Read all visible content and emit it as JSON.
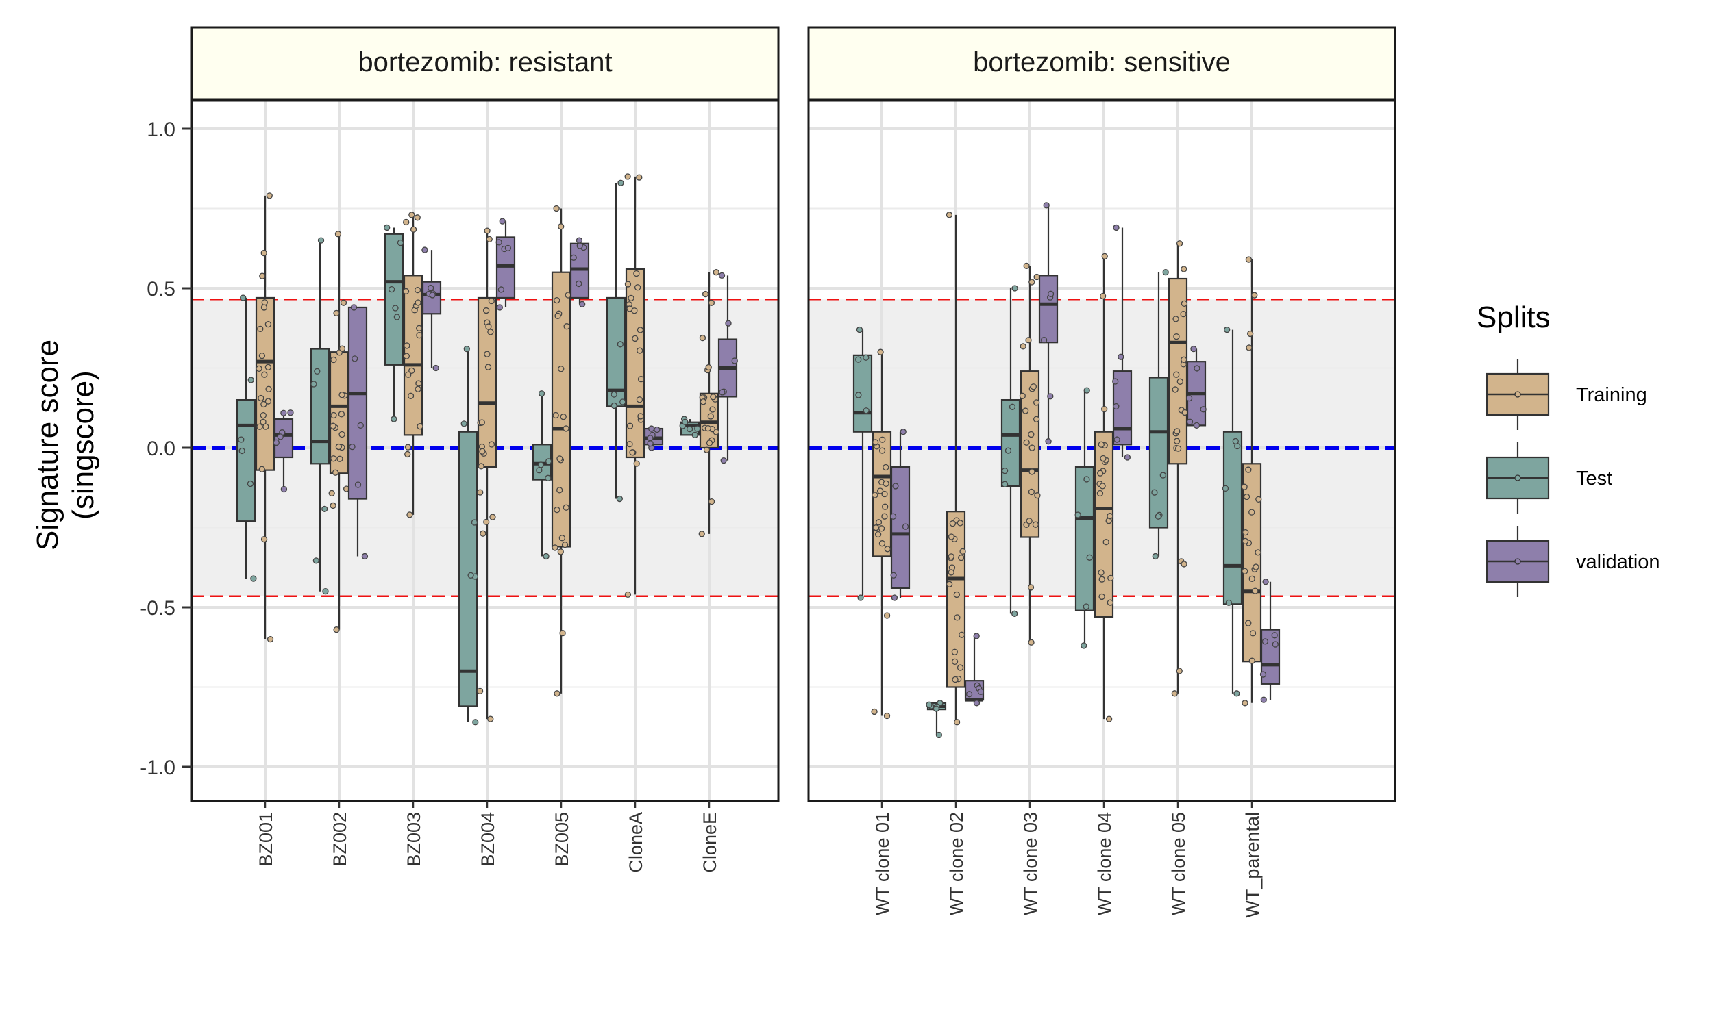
{
  "chart_data": {
    "type": "boxplot",
    "ylabel": [
      "Signature score",
      "(singscore)"
    ],
    "ylim": [
      -1.1,
      1.1
    ],
    "yticks": [
      1.0,
      0.5,
      0.0,
      -0.5,
      -1.0
    ],
    "ytick_labels": [
      "1.0",
      "0.5",
      "0.0",
      "-0.5",
      "-1.0"
    ],
    "reference_lines": {
      "zero": {
        "y": 0.0,
        "color": "#0000ee"
      },
      "upper": {
        "y": 0.465,
        "color": "#ee1111"
      },
      "lower": {
        "y": -0.465,
        "color": "#ee1111"
      },
      "band_color": "#efefef"
    },
    "legend": {
      "title": "Splits",
      "position": "right",
      "entries": [
        {
          "key": "Training",
          "label": "Training",
          "color": "#d2b48c"
        },
        {
          "key": "Test",
          "label": "Test",
          "color": "#7ea59f"
        },
        {
          "key": "validation",
          "label": "validation",
          "color": "#8e7fab"
        }
      ]
    },
    "panels": [
      {
        "title": "bortezomib: resistant",
        "categories": [
          {
            "name": "BZ001",
            "boxes": [
              {
                "split": "Test",
                "q1": -0.23,
                "median": 0.07,
                "q3": 0.15,
                "min": -0.41,
                "max": 0.47
              },
              {
                "split": "Training",
                "q1": -0.07,
                "median": 0.27,
                "q3": 0.47,
                "min": -0.6,
                "max": 0.79
              },
              {
                "split": "validation",
                "q1": -0.03,
                "median": 0.04,
                "q3": 0.09,
                "min": -0.13,
                "max": 0.11
              }
            ]
          },
          {
            "name": "BZ002",
            "boxes": [
              {
                "split": "Test",
                "q1": -0.05,
                "median": 0.02,
                "q3": 0.31,
                "min": -0.45,
                "max": 0.65
              },
              {
                "split": "Training",
                "q1": -0.08,
                "median": 0.13,
                "q3": 0.3,
                "min": -0.57,
                "max": 0.67
              },
              {
                "split": "validation",
                "q1": -0.16,
                "median": 0.17,
                "q3": 0.44,
                "min": -0.34,
                "max": 0.44
              }
            ]
          },
          {
            "name": "BZ003",
            "boxes": [
              {
                "split": "Test",
                "q1": 0.26,
                "median": 0.52,
                "q3": 0.67,
                "min": 0.09,
                "max": 0.69
              },
              {
                "split": "Training",
                "q1": 0.04,
                "median": 0.26,
                "q3": 0.54,
                "min": -0.21,
                "max": 0.73
              },
              {
                "split": "validation",
                "q1": 0.42,
                "median": 0.48,
                "q3": 0.52,
                "min": 0.25,
                "max": 0.62
              }
            ]
          },
          {
            "name": "BZ004",
            "boxes": [
              {
                "split": "Test",
                "q1": -0.81,
                "median": -0.7,
                "q3": 0.05,
                "min": -0.86,
                "max": 0.31
              },
              {
                "split": "Training",
                "q1": -0.06,
                "median": 0.14,
                "q3": 0.47,
                "min": -0.85,
                "max": 0.68
              },
              {
                "split": "validation",
                "q1": 0.47,
                "median": 0.57,
                "q3": 0.66,
                "min": 0.44,
                "max": 0.71
              }
            ]
          },
          {
            "name": "BZ005",
            "boxes": [
              {
                "split": "Test",
                "q1": -0.1,
                "median": -0.05,
                "q3": 0.01,
                "min": -0.34,
                "max": 0.17
              },
              {
                "split": "Training",
                "q1": -0.31,
                "median": 0.06,
                "q3": 0.55,
                "min": -0.77,
                "max": 0.75
              },
              {
                "split": "validation",
                "q1": 0.47,
                "median": 0.56,
                "q3": 0.64,
                "min": 0.45,
                "max": 0.65
              }
            ]
          },
          {
            "name": "CloneA",
            "boxes": [
              {
                "split": "Test",
                "q1": 0.13,
                "median": 0.18,
                "q3": 0.47,
                "min": -0.16,
                "max": 0.83
              },
              {
                "split": "Training",
                "q1": -0.03,
                "median": 0.13,
                "q3": 0.56,
                "min": -0.46,
                "max": 0.85
              },
              {
                "split": "validation",
                "q1": 0.01,
                "median": 0.03,
                "q3": 0.06,
                "min": 0.0,
                "max": 0.06
              }
            ]
          },
          {
            "name": "CloneE",
            "boxes": [
              {
                "split": "Test",
                "q1": 0.04,
                "median": 0.07,
                "q3": 0.08,
                "min": 0.04,
                "max": 0.09
              },
              {
                "split": "Training",
                "q1": 0.0,
                "median": 0.08,
                "q3": 0.17,
                "min": -0.27,
                "max": 0.55
              },
              {
                "split": "validation",
                "q1": 0.16,
                "median": 0.25,
                "q3": 0.34,
                "min": -0.04,
                "max": 0.54
              }
            ]
          }
        ]
      },
      {
        "title": "bortezomib: sensitive",
        "categories": [
          {
            "name": "WT clone 01",
            "boxes": [
              {
                "split": "Test",
                "q1": 0.05,
                "median": 0.11,
                "q3": 0.29,
                "min": -0.47,
                "max": 0.37
              },
              {
                "split": "Training",
                "q1": -0.34,
                "median": -0.09,
                "q3": 0.05,
                "min": -0.84,
                "max": 0.3
              },
              {
                "split": "validation",
                "q1": -0.44,
                "median": -0.27,
                "q3": -0.06,
                "min": -0.47,
                "max": 0.05
              }
            ]
          },
          {
            "name": "WT clone 02",
            "boxes": [
              {
                "split": "Test",
                "q1": -0.82,
                "median": -0.81,
                "q3": -0.8,
                "min": -0.9,
                "max": -0.8
              },
              {
                "split": "Training",
                "q1": -0.75,
                "median": -0.41,
                "q3": -0.2,
                "min": -0.86,
                "max": 0.73
              },
              {
                "split": "validation",
                "q1": -0.79,
                "median": -0.79,
                "q3": -0.73,
                "min": -0.8,
                "max": -0.59
              }
            ]
          },
          {
            "name": "WT clone 03",
            "boxes": [
              {
                "split": "Test",
                "q1": -0.12,
                "median": 0.04,
                "q3": 0.15,
                "min": -0.52,
                "max": 0.5
              },
              {
                "split": "Training",
                "q1": -0.28,
                "median": -0.07,
                "q3": 0.24,
                "min": -0.61,
                "max": 0.57
              },
              {
                "split": "validation",
                "q1": 0.33,
                "median": 0.45,
                "q3": 0.54,
                "min": 0.02,
                "max": 0.76
              }
            ]
          },
          {
            "name": "WT clone 04",
            "boxes": [
              {
                "split": "Test",
                "q1": -0.51,
                "median": -0.22,
                "q3": -0.06,
                "min": -0.62,
                "max": 0.18
              },
              {
                "split": "Training",
                "q1": -0.53,
                "median": -0.19,
                "q3": 0.05,
                "min": -0.85,
                "max": 0.6
              },
              {
                "split": "validation",
                "q1": 0.01,
                "median": 0.06,
                "q3": 0.24,
                "min": -0.03,
                "max": 0.69
              }
            ]
          },
          {
            "name": "WT clone 05",
            "boxes": [
              {
                "split": "Test",
                "q1": -0.25,
                "median": 0.05,
                "q3": 0.22,
                "min": -0.34,
                "max": 0.55
              },
              {
                "split": "Training",
                "q1": -0.05,
                "median": 0.33,
                "q3": 0.53,
                "min": -0.77,
                "max": 0.64
              },
              {
                "split": "validation",
                "q1": 0.07,
                "median": 0.17,
                "q3": 0.27,
                "min": 0.07,
                "max": 0.31
              }
            ]
          },
          {
            "name": "WT_parental",
            "boxes": [
              {
                "split": "Test",
                "q1": -0.49,
                "median": -0.37,
                "q3": 0.05,
                "min": -0.77,
                "max": 0.37
              },
              {
                "split": "Training",
                "q1": -0.67,
                "median": -0.45,
                "q3": -0.05,
                "min": -0.8,
                "max": 0.59
              },
              {
                "split": "validation",
                "q1": -0.74,
                "median": -0.68,
                "q3": -0.57,
                "min": -0.79,
                "max": -0.42
              }
            ]
          }
        ]
      }
    ]
  }
}
